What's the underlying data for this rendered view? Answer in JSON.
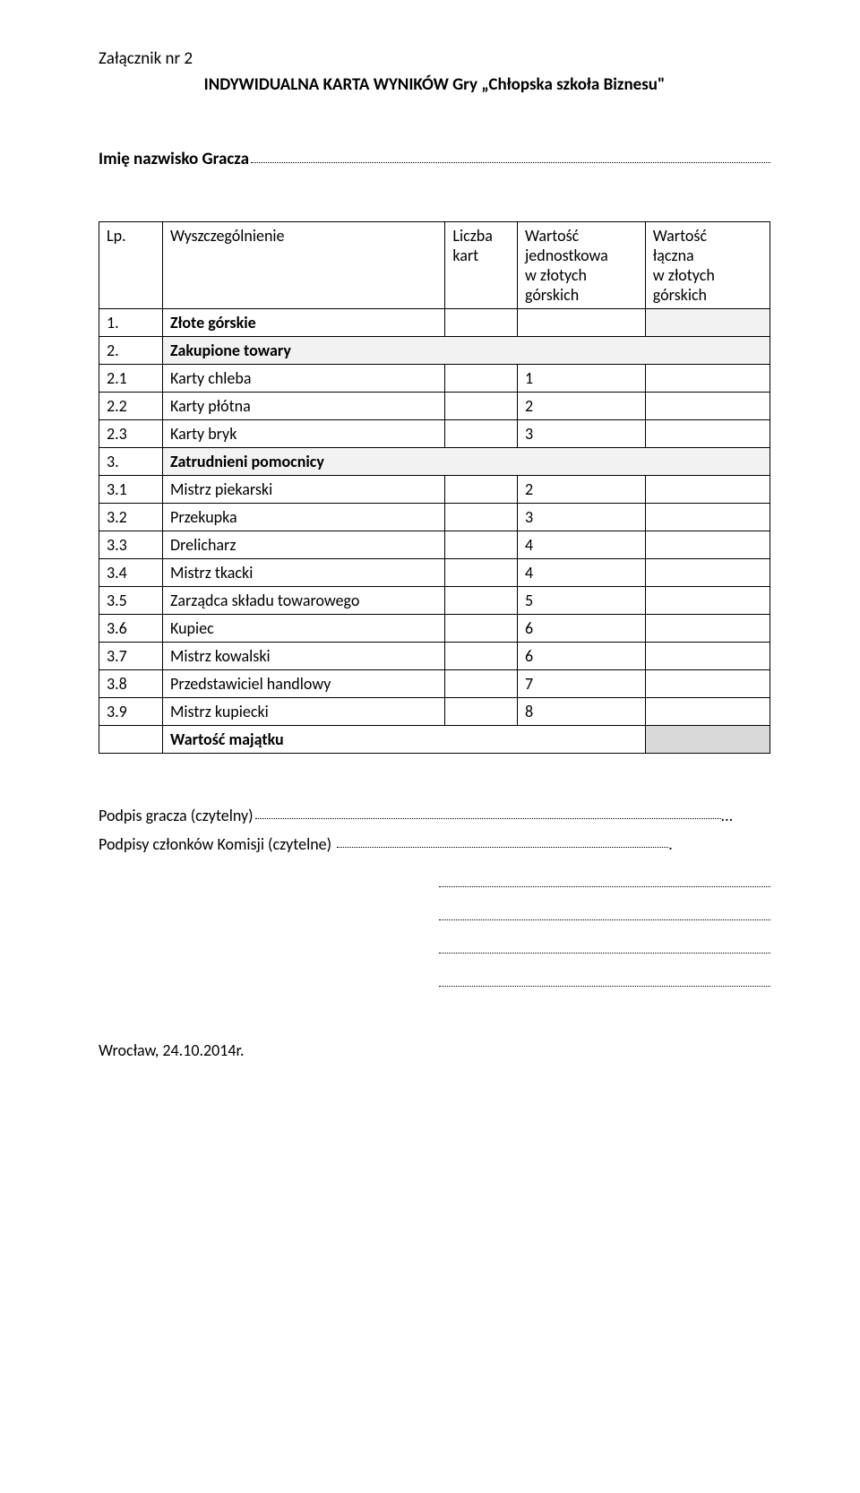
{
  "attachment_label": "Załącznik nr 2",
  "doc_title": "INDYWIDUALNA KARTA WYNIKÓW Gry „Chłopska szkoła Biznesu\"",
  "player_name_label": "Imię nazwisko Gracza",
  "columns": {
    "lp": "Lp.",
    "name": "Wyszczególnienie",
    "count": "Liczba kart",
    "unit_line1": "Wartość",
    "unit_line2": "jednostkowa",
    "unit_line3": "w złotych",
    "unit_line4": "górskich",
    "total_line1": "Wartość",
    "total_line2": "łączna",
    "total_line3": "w   złotych",
    "total_line4": "górskich"
  },
  "rows": [
    {
      "num": "1.",
      "name": "Złote górskie",
      "unit": "",
      "section": true,
      "shade_total": "shaded"
    },
    {
      "num": "2.",
      "name": "Zakupione towary",
      "unit": "",
      "section": true,
      "merge": true,
      "shade": "shaded"
    },
    {
      "num": "2.1",
      "name": "Karty chleba",
      "unit": "1"
    },
    {
      "num": "2.2",
      "name": "Karty płótna",
      "unit": "2"
    },
    {
      "num": "2.3",
      "name": "Karty bryk",
      "unit": "3"
    },
    {
      "num": "3.",
      "name": "Zatrudnieni pomocnicy",
      "unit": "",
      "section": true,
      "merge": true,
      "shade": "shaded"
    },
    {
      "num": "3.1",
      "name": "Mistrz piekarski",
      "unit": "2"
    },
    {
      "num": "3.2",
      "name": "Przekupka",
      "unit": "3"
    },
    {
      "num": "3.3",
      "name": "Drelicharz",
      "unit": "4"
    },
    {
      "num": "3.4",
      "name": "Mistrz tkacki",
      "unit": "4"
    },
    {
      "num": "3.5",
      "name": "Zarządca składu towarowego",
      "unit": "5"
    },
    {
      "num": "3.6",
      "name": "Kupiec",
      "unit": "6"
    },
    {
      "num": "3.7",
      "name": "Mistrz kowalski",
      "unit": "6"
    },
    {
      "num": "3.8",
      "name": "Przedstawiciel handlowy",
      "unit": "7"
    },
    {
      "num": "3.9",
      "name": "Mistrz kupiecki",
      "unit": "8"
    }
  ],
  "total_row_label": "Wartość majątku",
  "sign_player": "Podpis gracza (czytelny)",
  "sign_committee": "Podpisy członków Komisji (czytelne)",
  "footer_date": "Wrocław, 24.10.2014r.",
  "colors": {
    "text": "#000000",
    "background": "#ffffff",
    "shaded": "#f2f2f2",
    "dark_shaded": "#d9d9d9",
    "border": "#000000"
  },
  "typography": {
    "body_fontsize_pt": 14,
    "title_fontsize_pt": 14,
    "title_weight": "bold"
  }
}
